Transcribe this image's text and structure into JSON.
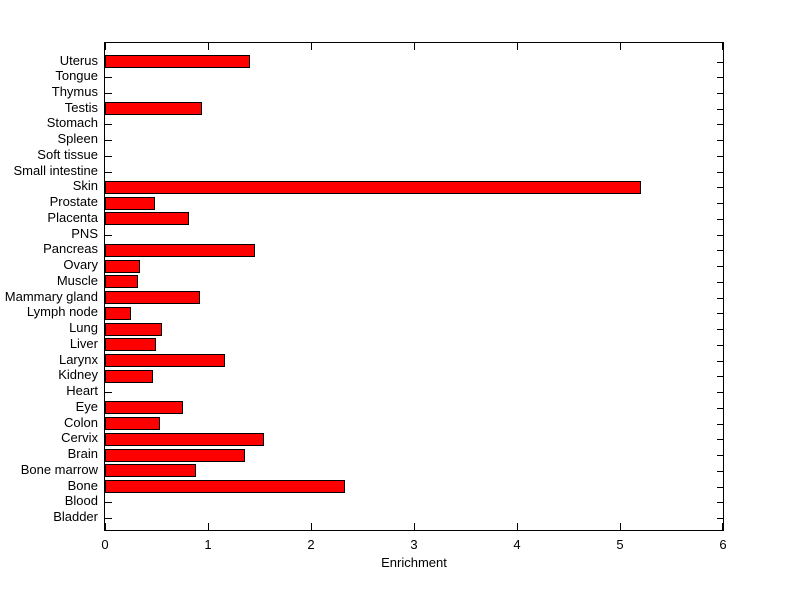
{
  "figure": {
    "background": "#ffffff",
    "axis_color": "#000000",
    "text_color": "#000000"
  },
  "chart_data": {
    "type": "bar",
    "orientation": "horizontal",
    "title": "",
    "xlabel": "Enrichment",
    "ylabel": "",
    "xlim": [
      0,
      6
    ],
    "xticks": [
      0,
      1,
      2,
      3,
      4,
      5,
      6
    ],
    "grid": false,
    "legend": null,
    "bar_color": "#ff0000",
    "bar_edge_color": "#000000",
    "categories_top_to_bottom": [
      "Uterus",
      "Tongue",
      "Thymus",
      "Testis",
      "Stomach",
      "Spleen",
      "Soft tissue",
      "Small intestine",
      "Skin",
      "Prostate",
      "Placenta",
      "PNS",
      "Pancreas",
      "Ovary",
      "Muscle",
      "Mammary gland",
      "Lymph node",
      "Lung",
      "Liver",
      "Larynx",
      "Kidney",
      "Heart",
      "Eye",
      "Colon",
      "Cervix",
      "Brain",
      "Bone marrow",
      "Bone",
      "Blood",
      "Bladder"
    ],
    "values": [
      1.41,
      0,
      0,
      0.94,
      0,
      0,
      0,
      0,
      5.2,
      0.48,
      0.81,
      0,
      1.45,
      0.34,
      0.32,
      0.92,
      0.25,
      0.55,
      0.49,
      1.16,
      0.47,
      0,
      0.76,
      0.53,
      1.54,
      1.36,
      0.88,
      2.33,
      0,
      0
    ]
  }
}
